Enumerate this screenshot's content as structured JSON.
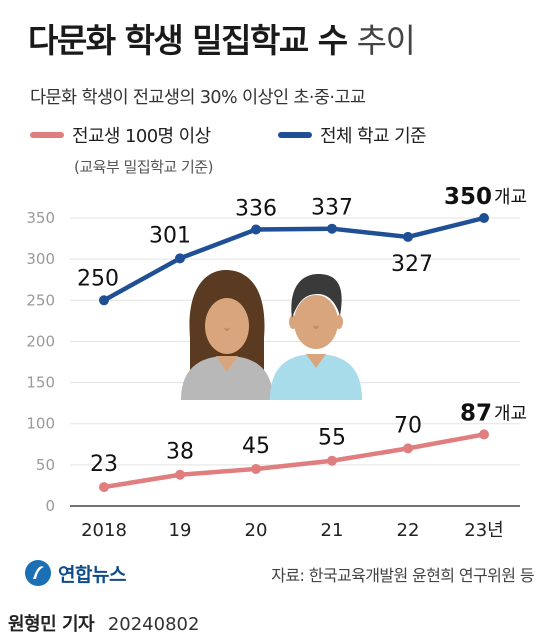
{
  "header": {
    "title_bold": "다문화 학생 밀집학교 수",
    "title_light": "추이",
    "subtitle": "다문화 학생이 전교생의 30% 이상인 초·중·고교"
  },
  "legend": {
    "series1_label": "전교생 100명 이상",
    "series2_label": "전체 학교 기준",
    "note": "(교육부 밀집학교 기준)"
  },
  "footer": {
    "logo_text": "연합뉴스",
    "source": "자료: 한국교육개발원 윤현희 연구위원 등",
    "reporter": "원형민 기자",
    "date": "20240802"
  },
  "colors": {
    "series_total": "#1f4f94",
    "series_100": "#e07e7f",
    "grid": "#e3e3e3",
    "axis": "#444444",
    "tick_text": "#9a9a9a"
  },
  "chart_data": {
    "type": "line",
    "categories": [
      "2018",
      "19",
      "20",
      "21",
      "22",
      "23년"
    ],
    "series": [
      {
        "name": "전체 학교 기준",
        "values": [
          250,
          301,
          336,
          337,
          327,
          350
        ],
        "labels": [
          "250",
          "301",
          "336",
          "337",
          "327",
          "350"
        ],
        "last_unit": "개교",
        "color": "#1f4f94"
      },
      {
        "name": "전교생 100명 이상",
        "values": [
          23,
          38,
          45,
          55,
          70,
          87
        ],
        "labels": [
          "23",
          "38",
          "45",
          "55",
          "70",
          "87"
        ],
        "last_unit": "개교",
        "color": "#e07e7f"
      }
    ],
    "yticks": [
      "0",
      "50",
      "100",
      "150",
      "200",
      "250",
      "300",
      "350"
    ],
    "ylim": [
      0,
      350
    ],
    "grid": true,
    "legend_position": "top-left"
  }
}
